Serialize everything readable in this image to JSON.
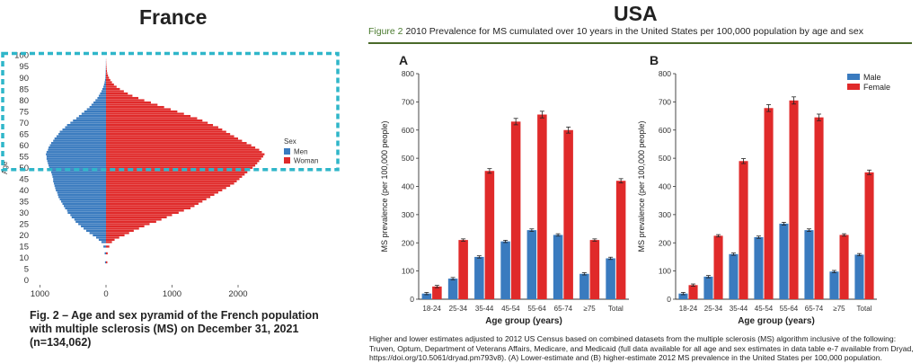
{
  "france": {
    "heading": "France",
    "caption": "Fig. 2 – Age and sex pyramid of the French population with multiple sclerosis (MS) on December 31, 2021 (n=134,062)"
  },
  "usa": {
    "heading": "USA",
    "figure_label": "Figure 2",
    "figure_title": "2010 Prevalence for MS cumulated over 10 years in the United States per 100,000 population by age and sex",
    "footnote": "Higher and lower estimates adjusted to 2012 US Census based on combined datasets from the multiple sclerosis (MS) algorithm inclusive of the following: Truven, Optum, Department of Veterans Affairs, Medicare, and Medicaid (full data available for all age and sex estimates in data table e-7 available from Dryad, https://doi.org/10.5061/dryad.pm793v8). (A) Lower-estimate and (B) higher-estimate 2012 MS prevalence in the United States per 100,000 population."
  },
  "colors": {
    "men": "#3a7bbf",
    "women": "#e02a2a",
    "male": "#3a7bbf",
    "female": "#e02a2a",
    "highlight": "#2fb6c9"
  },
  "chart_data": [
    {
      "type": "bar",
      "orientation": "horizontal-pyramid",
      "title": "",
      "ylabel": "Age",
      "xlabel": "",
      "xlim": [
        -1000,
        2400
      ],
      "x_ticks": [
        -1000,
        0,
        1000,
        2000
      ],
      "x_tick_labels": [
        "1000",
        "0",
        "1000",
        "2000"
      ],
      "y_ticks": [
        0,
        5,
        10,
        15,
        20,
        25,
        30,
        35,
        40,
        45,
        50,
        55,
        60,
        65,
        70,
        75,
        80,
        85,
        90,
        95,
        100
      ],
      "legend_title": "Sex",
      "legend_position": "right",
      "highlight_box_ages": [
        50,
        100
      ],
      "ages": [
        8,
        12,
        15,
        17,
        18,
        19,
        20,
        21,
        22,
        23,
        24,
        25,
        26,
        27,
        28,
        29,
        30,
        31,
        32,
        33,
        34,
        35,
        36,
        37,
        38,
        39,
        40,
        41,
        42,
        43,
        44,
        45,
        46,
        47,
        48,
        49,
        50,
        51,
        52,
        53,
        54,
        55,
        56,
        57,
        58,
        59,
        60,
        61,
        62,
        63,
        64,
        65,
        66,
        67,
        68,
        69,
        70,
        71,
        72,
        73,
        74,
        75,
        76,
        77,
        78,
        79,
        80,
        81,
        82,
        83,
        84,
        85,
        86,
        87,
        88,
        89,
        90,
        91,
        92,
        93,
        94,
        95,
        96,
        97,
        98
      ],
      "series": [
        {
          "name": "Men",
          "values": [
            15,
            20,
            40,
            70,
            110,
            150,
            200,
            250,
            300,
            340,
            380,
            420,
            460,
            480,
            520,
            540,
            580,
            590,
            620,
            640,
            660,
            680,
            700,
            720,
            730,
            740,
            760,
            770,
            780,
            790,
            800,
            800,
            810,
            820,
            830,
            850,
            860,
            870,
            880,
            890,
            900,
            900,
            910,
            900,
            880,
            870,
            850,
            830,
            800,
            780,
            750,
            720,
            700,
            660,
            620,
            590,
            540,
            500,
            450,
            410,
            370,
            330,
            290,
            250,
            220,
            190,
            160,
            130,
            110,
            90,
            70,
            55,
            40,
            30,
            22,
            15,
            10,
            8,
            6,
            5,
            4,
            3,
            2,
            2,
            1
          ]
        },
        {
          "name": "Woman",
          "values": [
            20,
            25,
            50,
            90,
            130,
            200,
            280,
            350,
            420,
            500,
            580,
            660,
            760,
            840,
            920,
            1000,
            1100,
            1180,
            1280,
            1340,
            1400,
            1460,
            1520,
            1580,
            1640,
            1700,
            1760,
            1820,
            1880,
            1940,
            1980,
            2020,
            2060,
            2100,
            2140,
            2180,
            2220,
            2260,
            2290,
            2320,
            2350,
            2380,
            2400,
            2360,
            2320,
            2260,
            2200,
            2130,
            2060,
            2000,
            1940,
            1880,
            1820,
            1760,
            1700,
            1620,
            1540,
            1460,
            1380,
            1280,
            1180,
            1080,
            980,
            880,
            780,
            680,
            580,
            490,
            400,
            330,
            270,
            210,
            160,
            120,
            90,
            65,
            45,
            30,
            20,
            14,
            10,
            7,
            5,
            3,
            2
          ]
        }
      ]
    },
    {
      "type": "bar",
      "panel_label": "A",
      "title": "",
      "xlabel": "Age group (years)",
      "ylabel": "MS prevalence (per 100,000 people)",
      "ylim": [
        0,
        800
      ],
      "y_ticks": [
        0,
        100,
        200,
        300,
        400,
        500,
        600,
        700,
        800
      ],
      "categories": [
        "18-24",
        "25-34",
        "35-44",
        "45-54",
        "55-64",
        "65-74",
        "≥75",
        "Total"
      ],
      "series": [
        {
          "name": "Male",
          "values": [
            20,
            73,
            150,
            205,
            245,
            228,
            90,
            145
          ]
        },
        {
          "name": "Female",
          "values": [
            45,
            210,
            455,
            630,
            655,
            600,
            210,
            420
          ]
        }
      ]
    },
    {
      "type": "bar",
      "panel_label": "B",
      "title": "",
      "xlabel": "Age group (years)",
      "ylabel": "MS prevalence (per 100,000 people)",
      "ylim": [
        0,
        800
      ],
      "y_ticks": [
        0,
        100,
        200,
        300,
        400,
        500,
        600,
        700,
        800
      ],
      "legend_position": "top-right",
      "categories": [
        "18-24",
        "25-34",
        "35-44",
        "45-54",
        "55-64",
        "65-74",
        "≥75",
        "Total"
      ],
      "series": [
        {
          "name": "Male",
          "values": [
            20,
            80,
            160,
            220,
            268,
            245,
            98,
            158
          ]
        },
        {
          "name": "Female",
          "values": [
            50,
            225,
            490,
            678,
            705,
            645,
            228,
            450
          ]
        }
      ]
    }
  ]
}
